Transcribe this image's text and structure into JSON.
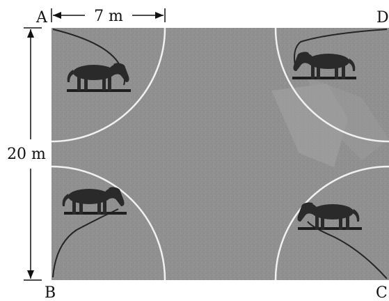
{
  "labels": {
    "corner_a": "A",
    "corner_b": "B",
    "corner_c": "C",
    "corner_d": "D",
    "width_dimension": "7 m",
    "height_dimension": "20 m"
  },
  "colors": {
    "field": "#8f8f8f",
    "field_light": "#a2a2a2",
    "arc_line": "#f1f1f1",
    "horse": "#2a2a2a",
    "rope": "#242424",
    "ground_shadow": "#1e1e1e",
    "dimension_line": "#111111"
  },
  "icons": {
    "horse": "horse-silhouette-icon",
    "rope": "tether-rope"
  }
}
